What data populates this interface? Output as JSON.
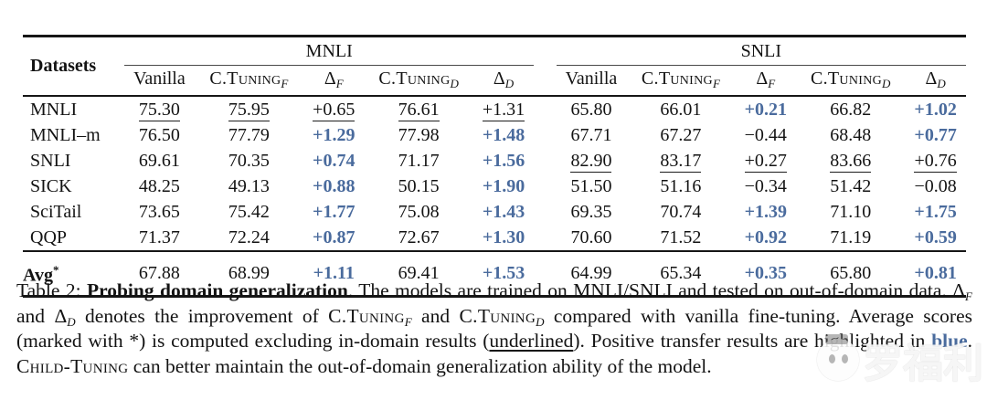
{
  "colors": {
    "accent_blue": "#4a6b9d",
    "rule_black": "#161616"
  },
  "table": {
    "header": {
      "datasets": "Datasets",
      "groups": [
        "MNLI",
        "SNLI"
      ],
      "vanilla": "Vanilla",
      "ctuning": "C.Tuning",
      "delta": "Δ",
      "sub_f": "F",
      "sub_d": "D"
    },
    "rows": [
      {
        "label": "MNLI",
        "cells": [
          {
            "t": "75.30",
            "u": true
          },
          {
            "t": "75.95",
            "u": true
          },
          {
            "t": "+0.65",
            "u": true
          },
          {
            "t": "76.61",
            "u": true
          },
          {
            "t": "+1.31",
            "u": true
          },
          {
            "t": "65.80"
          },
          {
            "t": "66.01"
          },
          {
            "t": "+0.21",
            "b": true
          },
          {
            "t": "66.82"
          },
          {
            "t": "+1.02",
            "b": true
          }
        ]
      },
      {
        "label": "MNLI–m",
        "cells": [
          {
            "t": "76.50"
          },
          {
            "t": "77.79"
          },
          {
            "t": "+1.29",
            "b": true
          },
          {
            "t": "77.98"
          },
          {
            "t": "+1.48",
            "b": true
          },
          {
            "t": "67.71"
          },
          {
            "t": "67.27"
          },
          {
            "t": "−0.44"
          },
          {
            "t": "68.48"
          },
          {
            "t": "+0.77",
            "b": true
          }
        ]
      },
      {
        "label": "SNLI",
        "cells": [
          {
            "t": "69.61"
          },
          {
            "t": "70.35"
          },
          {
            "t": "+0.74",
            "b": true
          },
          {
            "t": "71.17"
          },
          {
            "t": "+1.56",
            "b": true
          },
          {
            "t": "82.90",
            "u": true
          },
          {
            "t": "83.17",
            "u": true
          },
          {
            "t": "+0.27",
            "u": true
          },
          {
            "t": "83.66",
            "u": true
          },
          {
            "t": "+0.76",
            "u": true
          }
        ]
      },
      {
        "label": "SICK",
        "cells": [
          {
            "t": "48.25"
          },
          {
            "t": "49.13"
          },
          {
            "t": "+0.88",
            "b": true
          },
          {
            "t": "50.15"
          },
          {
            "t": "+1.90",
            "b": true
          },
          {
            "t": "51.50"
          },
          {
            "t": "51.16"
          },
          {
            "t": "−0.34"
          },
          {
            "t": "51.42"
          },
          {
            "t": "−0.08"
          }
        ]
      },
      {
        "label": "SciTail",
        "cells": [
          {
            "t": "73.65"
          },
          {
            "t": "75.42"
          },
          {
            "t": "+1.77",
            "b": true
          },
          {
            "t": "75.08"
          },
          {
            "t": "+1.43",
            "b": true
          },
          {
            "t": "69.35"
          },
          {
            "t": "70.74"
          },
          {
            "t": "+1.39",
            "b": true
          },
          {
            "t": "71.10"
          },
          {
            "t": "+1.75",
            "b": true
          }
        ]
      },
      {
        "label": "QQP",
        "cells": [
          {
            "t": "71.37"
          },
          {
            "t": "72.24"
          },
          {
            "t": "+0.87",
            "b": true
          },
          {
            "t": "72.67"
          },
          {
            "t": "+1.30",
            "b": true
          },
          {
            "t": "70.60"
          },
          {
            "t": "71.52"
          },
          {
            "t": "+0.92",
            "b": true
          },
          {
            "t": "71.19"
          },
          {
            "t": "+0.59",
            "b": true
          }
        ]
      },
      {
        "label": "Avg",
        "sup": "*",
        "avg": true,
        "cells": [
          {
            "t": "67.88"
          },
          {
            "t": "68.99"
          },
          {
            "t": "+1.11",
            "b": true
          },
          {
            "t": "69.41"
          },
          {
            "t": "+1.53",
            "b": true
          },
          {
            "t": "64.99"
          },
          {
            "t": "65.34"
          },
          {
            "t": "+0.35",
            "b": true
          },
          {
            "t": "65.80"
          },
          {
            "t": "+0.81",
            "b": true
          }
        ]
      }
    ]
  },
  "caption": {
    "prefix": "Table 2: ",
    "title": "Probing domain generalization",
    "s1": ".  The models are trained on MNLI/SNLI and tested on out-of-domain data. ",
    "delta": "Δ",
    "sub_f": "F",
    "sub_d": "D",
    "and1": " and ",
    "s2": " denotes the improvement of ",
    "ctuning": "C.Tuning",
    "and2": " and ",
    "s3": " compared with vanilla fine-tuning. Average scores (marked with *) is computed excluding in-domain results (",
    "underlined_word": "underlined",
    "s4": "). Positive transfer results are highlighted in ",
    "blue_word": "blue",
    "s5": ". ",
    "childtuning": "Child-Tuning",
    "s6": " can better maintain the out-of-domain generalization ability of the model."
  },
  "watermark": {
    "text": "罗福利"
  }
}
